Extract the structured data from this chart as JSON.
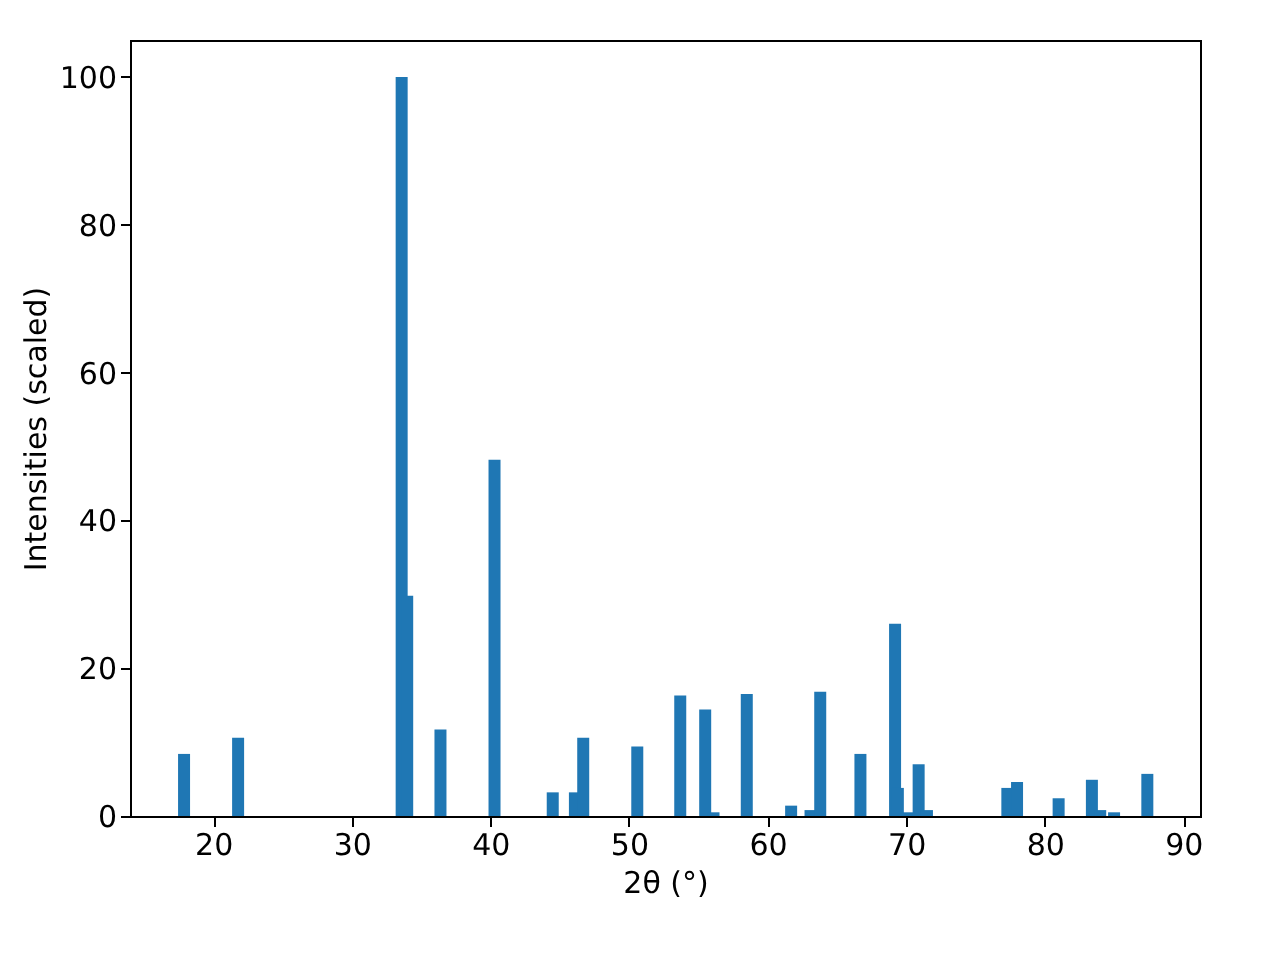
{
  "chart_data": {
    "type": "bar",
    "xlabel": "2θ (°)",
    "ylabel": "Intensities (scaled)",
    "x": [
      17.9,
      21.8,
      33.6,
      34.0,
      36.4,
      40.3,
      44.5,
      46.1,
      46.7,
      50.6,
      53.7,
      55.5,
      56.1,
      58.5,
      61.7,
      63.1,
      63.8,
      66.7,
      69.2,
      69.4,
      70.1,
      70.9,
      71.5,
      77.3,
      78.0,
      81.0,
      83.4,
      84.0,
      85.0,
      87.4
    ],
    "values": [
      8.4,
      10.6,
      100,
      29.8,
      11.7,
      48.2,
      3.2,
      3.2,
      10.6,
      9.4,
      16.3,
      14.4,
      0.5,
      16.5,
      1.4,
      0.8,
      16.8,
      8.4,
      26.0,
      3.8,
      0.5,
      7.0,
      0.8,
      3.8,
      4.6,
      2.4,
      4.9,
      0.8,
      0.5,
      5.7
    ],
    "color": "#1f77b4",
    "xlim": [
      14,
      91.2
    ],
    "ylim": [
      0,
      105
    ],
    "xticks": [
      20,
      30,
      40,
      50,
      60,
      70,
      80,
      90
    ],
    "yticks": [
      0,
      20,
      40,
      60,
      80,
      100
    ],
    "grid": false
  }
}
